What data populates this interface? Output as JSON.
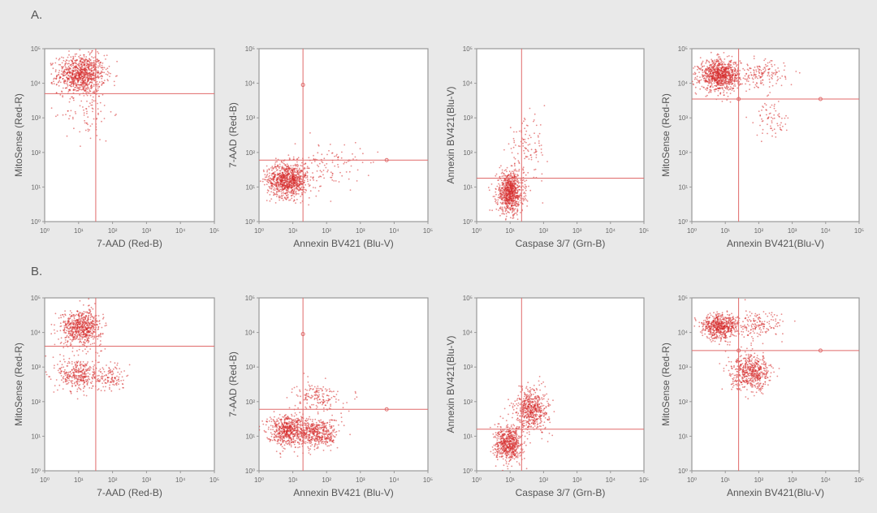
{
  "rows": [
    {
      "label": "A."
    },
    {
      "label": "B."
    }
  ],
  "chart_data": [
    {
      "type": "scatter",
      "row": "A",
      "title": "",
      "xlabel": "7-AAD (Red-B)",
      "ylabel": "MitoSense (Red-R)",
      "xscale": "log",
      "yscale": "log",
      "xlim": [
        1,
        100000
      ],
      "ylim": [
        1,
        100000
      ],
      "xticks": [
        "10⁰",
        "10¹",
        "10²",
        "10³",
        "10⁴",
        "10⁵"
      ],
      "yticks": [
        "10⁰",
        "10¹",
        "10²",
        "10³",
        "10⁴",
        "10⁵"
      ],
      "gate_x": 32,
      "gate_y": 5000,
      "gate_markers": [],
      "populations": [
        {
          "name": "MitoSense high / 7-AAD low",
          "x_center": 12,
          "y_center": 18000,
          "spread_x": 0.35,
          "spread_y": 0.28,
          "count": 900
        },
        {
          "name": "scatter tail",
          "x_center": 20,
          "y_center": 1500,
          "spread_x": 0.35,
          "spread_y": 0.45,
          "count": 90
        }
      ]
    },
    {
      "type": "scatter",
      "row": "A",
      "title": "",
      "xlabel": "Annexin BV421 (Blu-V)",
      "ylabel": "7-AAD (Red-B)",
      "xscale": "log",
      "yscale": "log",
      "xlim": [
        1,
        100000
      ],
      "ylim": [
        1,
        100000
      ],
      "xticks": [
        "10⁰",
        "10¹",
        "10²",
        "10³",
        "10⁴",
        "10⁵"
      ],
      "yticks": [
        "10⁰",
        "10¹",
        "10²",
        "10³",
        "10⁴",
        "10⁵"
      ],
      "gate_x": 20,
      "gate_y": 60,
      "gate_markers": [
        [
          20,
          9000
        ],
        [
          6000,
          60
        ]
      ],
      "populations": [
        {
          "name": "Annexin low / 7-AAD low",
          "x_center": 7,
          "y_center": 16,
          "spread_x": 0.3,
          "spread_y": 0.25,
          "count": 900
        },
        {
          "name": "Annexin mid tail",
          "x_center": 120,
          "y_center": 40,
          "spread_x": 0.5,
          "spread_y": 0.35,
          "count": 120
        }
      ]
    },
    {
      "type": "scatter",
      "row": "A",
      "title": "",
      "xlabel": "Caspase 3/7 (Grn-B)",
      "ylabel": "Annexin BV421(Blu-V)",
      "xscale": "log",
      "yscale": "log",
      "xlim": [
        1,
        100000
      ],
      "ylim": [
        1,
        100000
      ],
      "xticks": [
        "10⁰",
        "10¹",
        "10²",
        "10³",
        "10⁴",
        "10⁵"
      ],
      "yticks": [
        "10⁰",
        "10¹",
        "10²",
        "10³",
        "10⁴",
        "10⁵"
      ],
      "gate_x": 22,
      "gate_y": 18,
      "gate_markers": [],
      "populations": [
        {
          "name": "Caspase low / Annexin low",
          "x_center": 10,
          "y_center": 7,
          "spread_x": 0.2,
          "spread_y": 0.3,
          "count": 800
        },
        {
          "name": "Caspase high / Annexin high tail",
          "x_center": 30,
          "y_center": 120,
          "spread_x": 0.3,
          "spread_y": 0.45,
          "count": 110
        }
      ]
    },
    {
      "type": "scatter",
      "row": "A",
      "title": "",
      "xlabel": "Annexin BV421(Blu-V)",
      "ylabel": "MitoSense (Red-R)",
      "xscale": "log",
      "yscale": "log",
      "xlim": [
        1,
        100000
      ],
      "ylim": [
        1,
        100000
      ],
      "xticks": [
        "10⁰",
        "10¹",
        "10²",
        "10³",
        "10⁴",
        "10⁵"
      ],
      "yticks": [
        "10⁰",
        "10¹",
        "10²",
        "10³",
        "10⁴",
        "10⁵"
      ],
      "gate_x": 25,
      "gate_y": 3500,
      "gate_markers": [
        [
          25,
          3500
        ],
        [
          7000,
          3500
        ]
      ],
      "populations": [
        {
          "name": "MitoSense high / Annexin low",
          "x_center": 7,
          "y_center": 17000,
          "spread_x": 0.3,
          "spread_y": 0.22,
          "count": 900
        },
        {
          "name": "MitoSense high / Annexin mid",
          "x_center": 120,
          "y_center": 17000,
          "spread_x": 0.35,
          "spread_y": 0.2,
          "count": 150
        },
        {
          "name": "MitoSense low / Annexin high",
          "x_center": 250,
          "y_center": 900,
          "spread_x": 0.25,
          "spread_y": 0.25,
          "count": 70
        }
      ]
    },
    {
      "type": "scatter",
      "row": "B",
      "title": "",
      "xlabel": "7-AAD (Red-B)",
      "ylabel": "MitoSense (Red-R)",
      "xscale": "log",
      "yscale": "log",
      "xlim": [
        1,
        100000
      ],
      "ylim": [
        1,
        100000
      ],
      "xticks": [
        "10⁰",
        "10¹",
        "10²",
        "10³",
        "10⁴",
        "10⁵"
      ],
      "yticks": [
        "10⁰",
        "10¹",
        "10²",
        "10³",
        "10⁴",
        "10⁵"
      ],
      "gate_x": 32,
      "gate_y": 4000,
      "gate_markers": [],
      "populations": [
        {
          "name": "MitoSense high / 7-AAD low",
          "x_center": 12,
          "y_center": 14000,
          "spread_x": 0.3,
          "spread_y": 0.25,
          "count": 650
        },
        {
          "name": "MitoSense low / 7-AAD low",
          "x_center": 10,
          "y_center": 600,
          "spread_x": 0.3,
          "spread_y": 0.25,
          "count": 350
        },
        {
          "name": "MitoSense low / 7-AAD high",
          "x_center": 90,
          "y_center": 500,
          "spread_x": 0.2,
          "spread_y": 0.2,
          "count": 120
        }
      ]
    },
    {
      "type": "scatter",
      "row": "B",
      "title": "",
      "xlabel": "Annexin BV421 (Blu-V)",
      "ylabel": "7-AAD (Red-B)",
      "xscale": "log",
      "yscale": "log",
      "xlim": [
        1,
        100000
      ],
      "ylim": [
        1,
        100000
      ],
      "xticks": [
        "10⁰",
        "10¹",
        "10²",
        "10³",
        "10⁴",
        "10⁵"
      ],
      "yticks": [
        "10⁰",
        "10¹",
        "10²",
        "10³",
        "10⁴",
        "10⁵"
      ],
      "gate_x": 20,
      "gate_y": 60,
      "gate_markers": [
        [
          20,
          9000
        ],
        [
          6000,
          60
        ]
      ],
      "populations": [
        {
          "name": "Annexin low / 7-AAD low",
          "x_center": 7,
          "y_center": 15,
          "spread_x": 0.3,
          "spread_y": 0.22,
          "count": 600
        },
        {
          "name": "Annexin high / 7-AAD low",
          "x_center": 55,
          "y_center": 12,
          "spread_x": 0.3,
          "spread_y": 0.22,
          "count": 450
        },
        {
          "name": "Annexin high / 7-AAD high",
          "x_center": 55,
          "y_center": 140,
          "spread_x": 0.35,
          "spread_y": 0.2,
          "count": 160
        }
      ]
    },
    {
      "type": "scatter",
      "row": "B",
      "title": "",
      "xlabel": "Caspase 3/7 (Grn-B)",
      "ylabel": "Annexin BV421(Blu-V)",
      "xscale": "log",
      "yscale": "log",
      "xlim": [
        1,
        100000
      ],
      "ylim": [
        1,
        100000
      ],
      "xticks": [
        "10⁰",
        "10¹",
        "10²",
        "10³",
        "10⁴",
        "10⁵"
      ],
      "yticks": [
        "10⁰",
        "10¹",
        "10²",
        "10³",
        "10⁴",
        "10⁵"
      ],
      "gate_x": 22,
      "gate_y": 16,
      "gate_markers": [],
      "populations": [
        {
          "name": "Caspase low / Annexin low",
          "x_center": 9,
          "y_center": 6,
          "spread_x": 0.2,
          "spread_y": 0.25,
          "count": 600
        },
        {
          "name": "Caspase high / Annexin high",
          "x_center": 45,
          "y_center": 60,
          "spread_x": 0.25,
          "spread_y": 0.3,
          "count": 550
        }
      ]
    },
    {
      "type": "scatter",
      "row": "B",
      "title": "",
      "xlabel": "Annexin BV421(Blu-V)",
      "ylabel": "MitoSense (Red-R)",
      "xscale": "log",
      "yscale": "log",
      "xlim": [
        1,
        100000
      ],
      "ylim": [
        1,
        100000
      ],
      "xticks": [
        "10⁰",
        "10¹",
        "10²",
        "10³",
        "10⁴",
        "10⁵"
      ],
      "yticks": [
        "10⁰",
        "10¹",
        "10²",
        "10³",
        "10⁴",
        "10⁵"
      ],
      "gate_x": 25,
      "gate_y": 3000,
      "gate_markers": [
        [
          25,
          3000
        ],
        [
          7000,
          3000
        ]
      ],
      "populations": [
        {
          "name": "MitoSense high / Annexin low",
          "x_center": 7,
          "y_center": 15000,
          "spread_x": 0.28,
          "spread_y": 0.18,
          "count": 600
        },
        {
          "name": "MitoSense high / Annexin mid",
          "x_center": 100,
          "y_center": 15000,
          "spread_x": 0.35,
          "spread_y": 0.2,
          "count": 150
        },
        {
          "name": "MitoSense low / Annexin high",
          "x_center": 60,
          "y_center": 700,
          "spread_x": 0.3,
          "spread_y": 0.25,
          "count": 550
        }
      ]
    }
  ],
  "colors": {
    "dots": "#d62a2a",
    "gate": "#e06a6a",
    "frame": "#999999",
    "plot_bg": "#ffffff",
    "page_bg": "#e9e9e9"
  }
}
